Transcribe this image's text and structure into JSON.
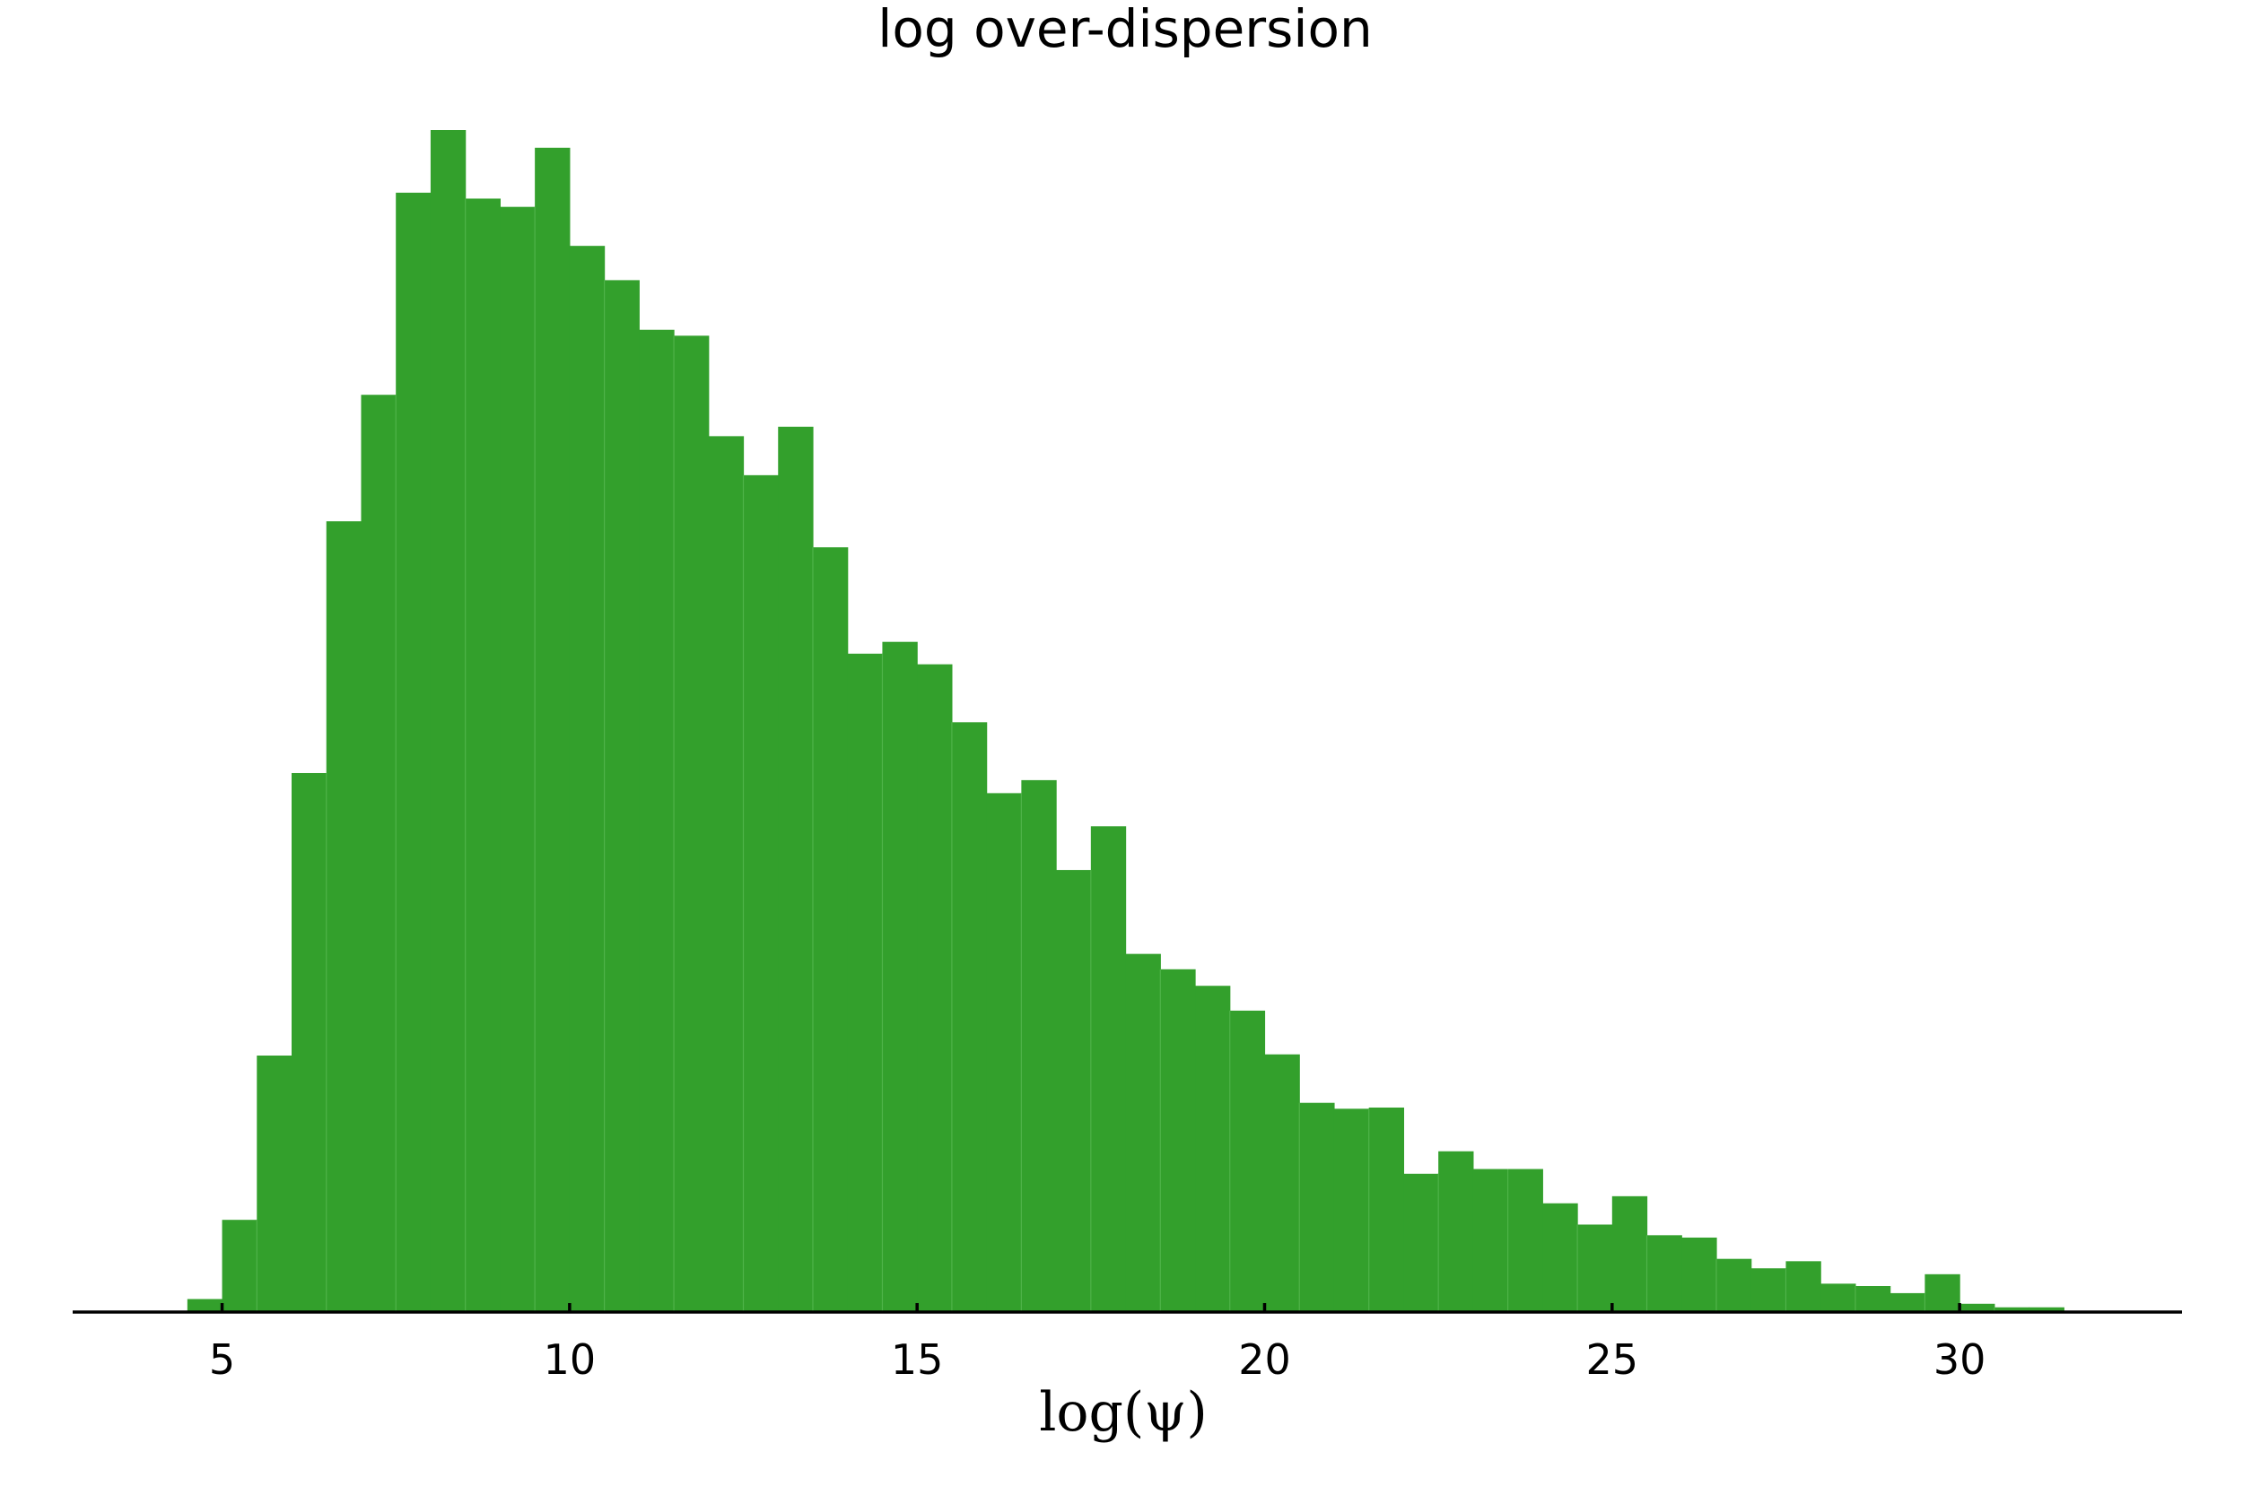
{
  "chart_data": {
    "type": "bar",
    "title": "log over-dispersion",
    "xlabel": "log(ψ)",
    "ylabel": "",
    "xlim": [
      2.85,
      33.2
    ],
    "ylim": [
      0,
      1
    ],
    "xticks": [
      5,
      10,
      15,
      20,
      25,
      30
    ],
    "xtick_labels": [
      "5",
      "10",
      "15",
      "20",
      "25",
      "30"
    ],
    "bin_width": 1.0,
    "bin_starts": [
      4.5,
      5.5,
      6.5,
      7.5,
      8.5,
      9.5,
      10.5,
      11.5,
      12.5,
      13.5,
      14.5,
      15.5,
      16.5,
      17.5,
      18.5,
      19.5,
      20.5,
      21.5,
      22.5,
      23.5,
      24.5,
      25.5,
      26.5,
      27.5,
      28.5,
      29.5,
      30.5,
      31.5
    ],
    "sub_bins_per_bin": 2,
    "values": [
      0.011,
      0.078,
      0.217,
      0.456,
      0.669,
      0.776,
      0.947,
      1.0,
      0.942,
      0.935,
      0.985,
      0.902,
      0.873,
      0.831,
      0.826,
      0.741,
      0.708,
      0.749,
      0.647,
      0.557,
      0.567,
      0.548,
      0.499,
      0.439,
      0.45,
      0.374,
      0.411,
      0.303,
      0.29,
      0.276,
      0.255,
      0.218,
      0.177,
      0.172,
      0.173,
      0.117,
      0.136,
      0.121,
      0.121,
      0.092,
      0.074,
      0.098,
      0.065,
      0.063,
      0.045,
      0.037,
      0.043,
      0.024,
      0.022,
      0.016,
      0.032,
      0.007,
      0.004,
      0.004,
      0.001,
      0.0,
      0.0,
      0.0
    ],
    "colors": {
      "bar": "#33a02c",
      "bar_edge": "#4fb349",
      "axis": "#000000"
    }
  }
}
